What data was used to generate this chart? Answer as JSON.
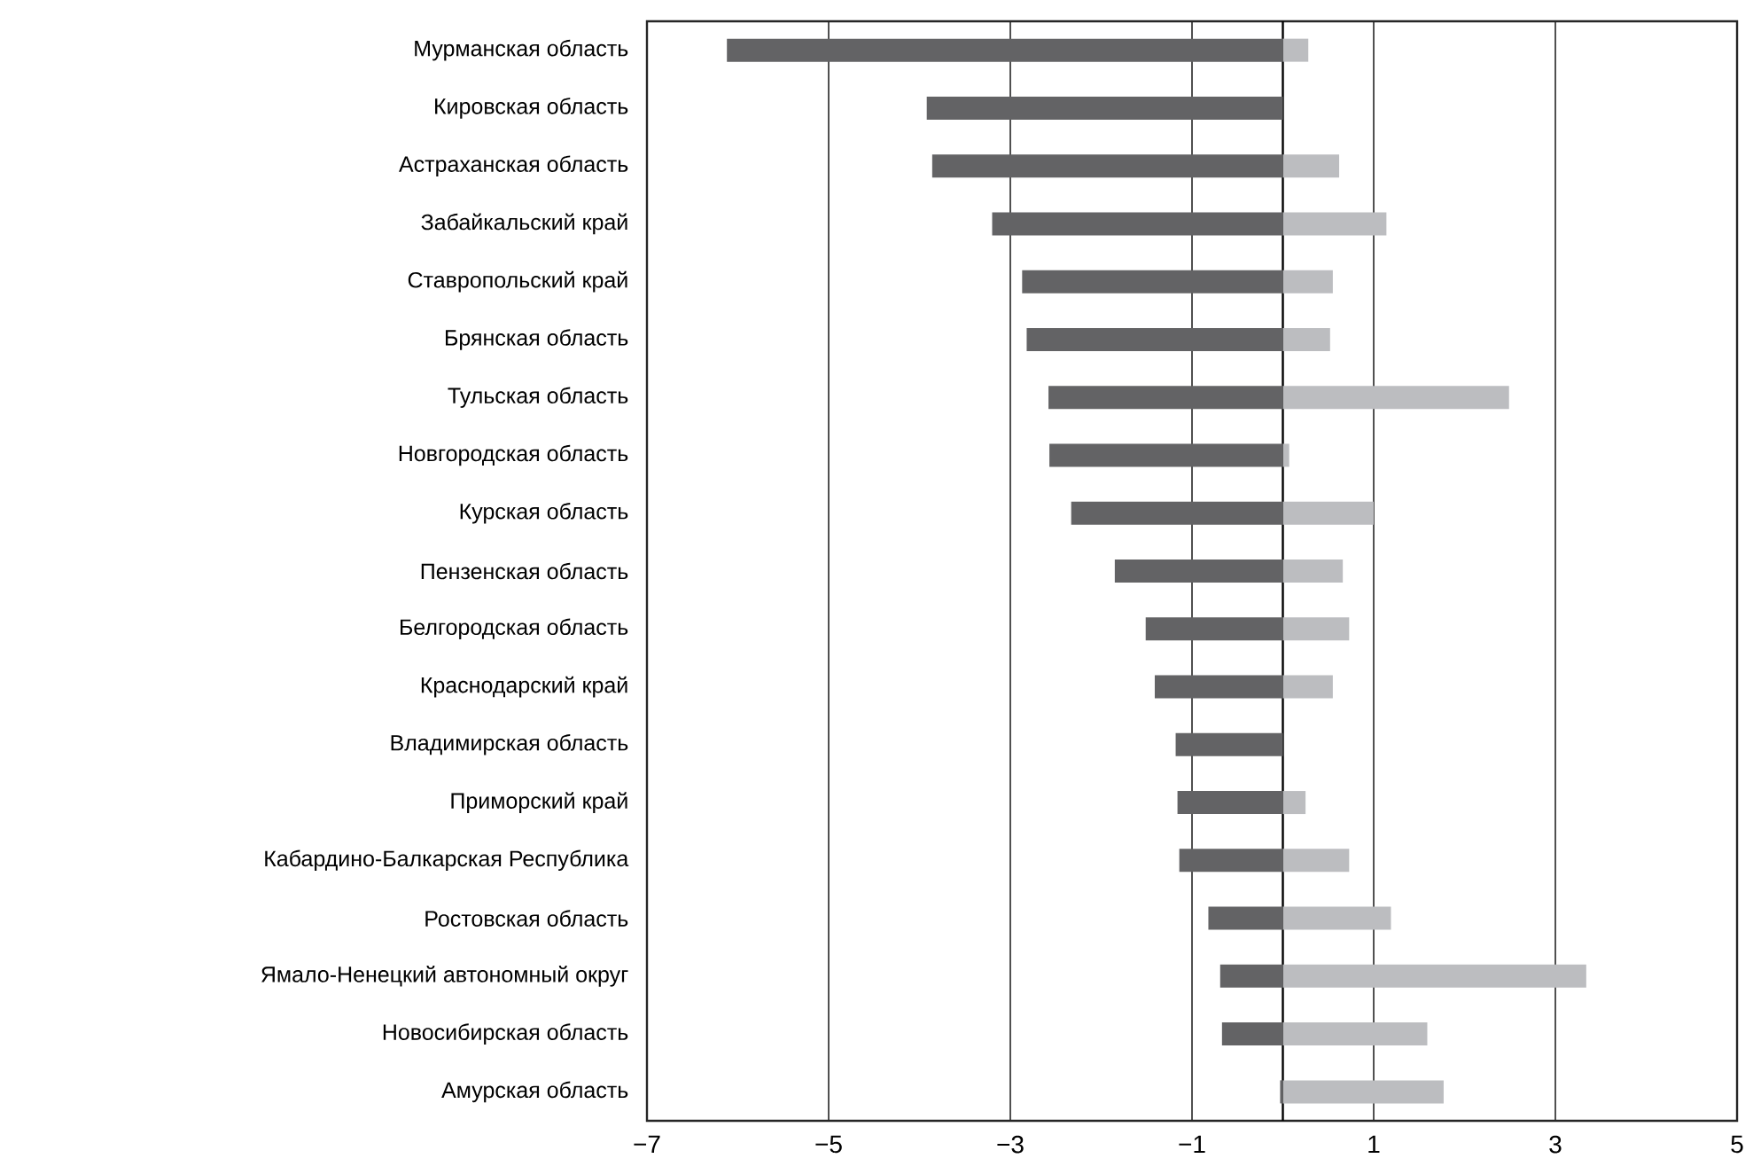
{
  "chart_data": {
    "type": "bar",
    "orientation": "horizontal",
    "categories": [
      "Мурманская область",
      "Кировская область",
      "Астраханская область",
      "Забайкальский край",
      "Ставропольский край",
      "Брянская область",
      "Тульская область",
      "Новгородская область",
      "Курская область",
      "Пензенская область",
      "Белгородская область",
      "Краснодарский край",
      "Владимирская область",
      "Приморский край",
      "Кабардино-Балкарская Республика",
      "Ростовская область",
      "Ямало-Ненецкий автономный округ",
      "Новосибирская область",
      "Амурская область"
    ],
    "series": [
      {
        "color": "#636365",
        "values": [
          -6.12,
          -3.92,
          -3.86,
          -3.2,
          -2.87,
          -2.82,
          -2.58,
          -2.57,
          -2.33,
          -1.85,
          -1.51,
          -1.41,
          -1.18,
          -1.16,
          -1.14,
          -0.82,
          -0.69,
          -0.67,
          -0.03
        ]
      },
      {
        "color": "#bcbdc0",
        "values": [
          0.28,
          null,
          0.62,
          1.14,
          0.55,
          0.52,
          2.49,
          0.07,
          1.0,
          0.66,
          0.73,
          0.55,
          null,
          0.25,
          0.73,
          1.19,
          3.34,
          1.59,
          1.77
        ]
      }
    ],
    "xlim": [
      -7,
      5
    ],
    "xticks": [
      {
        "value": -7,
        "label": "−7"
      },
      {
        "value": -5,
        "label": "−5"
      },
      {
        "value": -3,
        "label": "−3"
      },
      {
        "value": -1,
        "label": "−1"
      },
      1,
      3,
      5
    ],
    "grid": "x",
    "stacked": true
  }
}
